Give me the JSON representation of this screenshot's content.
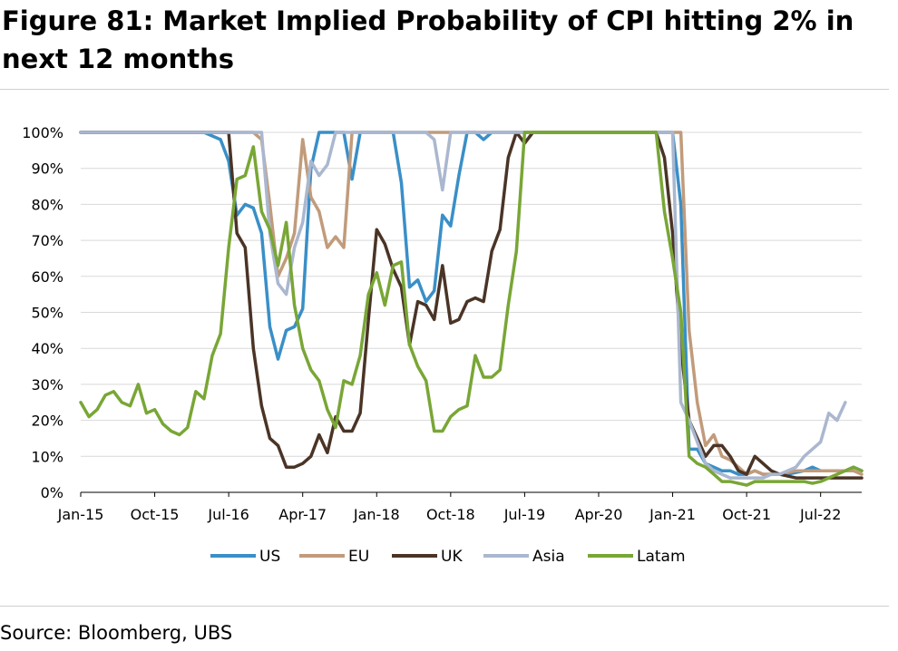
{
  "figure": {
    "title": "Figure 81: Market Implied Probability of CPI hitting 2% in next 12 months",
    "source": "Source: Bloomberg, UBS"
  },
  "chart_data": {
    "type": "line",
    "title": "Figure 81: Market Implied Probability of CPI hitting 2% in next 12 months",
    "xlabel": "",
    "ylabel": "",
    "ylim": [
      0,
      100
    ],
    "y_ticks": [
      "0%",
      "10%",
      "20%",
      "30%",
      "40%",
      "50%",
      "60%",
      "70%",
      "80%",
      "90%",
      "100%"
    ],
    "x_ticks": [
      "Jan-15",
      "Oct-15",
      "Jul-16",
      "Apr-17",
      "Jan-18",
      "Oct-18",
      "Jul-19",
      "Apr-20",
      "Jan-21",
      "Oct-21",
      "Jul-22"
    ],
    "x_range": [
      "2015-01",
      "2022-12"
    ],
    "grid": "horizontal",
    "legend_position": "bottom",
    "series": [
      {
        "name": "US",
        "color": "#3a8fc7",
        "points": [
          [
            "2015-01",
            100
          ],
          [
            "2016-01",
            100
          ],
          [
            "2016-04",
            100
          ],
          [
            "2016-06",
            98
          ],
          [
            "2016-07",
            92
          ],
          [
            "2016-08",
            77
          ],
          [
            "2016-09",
            80
          ],
          [
            "2016-10",
            79
          ],
          [
            "2016-11",
            72
          ],
          [
            "2016-12",
            46
          ],
          [
            "2017-01",
            37
          ],
          [
            "2017-02",
            45
          ],
          [
            "2017-03",
            46
          ],
          [
            "2017-04",
            51
          ],
          [
            "2017-05",
            90
          ],
          [
            "2017-06",
            100
          ],
          [
            "2017-07",
            100
          ],
          [
            "2017-08",
            100
          ],
          [
            "2017-09",
            100
          ],
          [
            "2017-10",
            87
          ],
          [
            "2017-11",
            100
          ],
          [
            "2018-01",
            100
          ],
          [
            "2018-03",
            100
          ],
          [
            "2018-04",
            86
          ],
          [
            "2018-05",
            57
          ],
          [
            "2018-06",
            59
          ],
          [
            "2018-07",
            53
          ],
          [
            "2018-08",
            56
          ],
          [
            "2018-09",
            77
          ],
          [
            "2018-10",
            74
          ],
          [
            "2018-11",
            88
          ],
          [
            "2018-12",
            100
          ],
          [
            "2019-01",
            100
          ],
          [
            "2019-02",
            98
          ],
          [
            "2019-03",
            100
          ],
          [
            "2019-05",
            100
          ],
          [
            "2020-06",
            100
          ],
          [
            "2020-10",
            100
          ],
          [
            "2021-01",
            100
          ],
          [
            "2021-02",
            80
          ],
          [
            "2021-03",
            12
          ],
          [
            "2021-04",
            12
          ],
          [
            "2021-05",
            8
          ],
          [
            "2021-06",
            7
          ],
          [
            "2021-07",
            6
          ],
          [
            "2021-08",
            6
          ],
          [
            "2021-09",
            5
          ],
          [
            "2021-10",
            5
          ],
          [
            "2021-11",
            6
          ],
          [
            "2021-12",
            5
          ],
          [
            "2022-01",
            5
          ],
          [
            "2022-03",
            5
          ],
          [
            "2022-05",
            6
          ],
          [
            "2022-06",
            7
          ],
          [
            "2022-07",
            6
          ],
          [
            "2022-09",
            6
          ],
          [
            "2022-10",
            6
          ],
          [
            "2022-11",
            7
          ],
          [
            "2022-12",
            6
          ]
        ]
      },
      {
        "name": "EU",
        "color": "#c19b7b",
        "points": [
          [
            "2015-01",
            100
          ],
          [
            "2016-04",
            100
          ],
          [
            "2016-10",
            100
          ],
          [
            "2016-11",
            98
          ],
          [
            "2016-12",
            80
          ],
          [
            "2017-01",
            60
          ],
          [
            "2017-02",
            65
          ],
          [
            "2017-03",
            72
          ],
          [
            "2017-04",
            98
          ],
          [
            "2017-05",
            82
          ],
          [
            "2017-06",
            78
          ],
          [
            "2017-07",
            68
          ],
          [
            "2017-08",
            71
          ],
          [
            "2017-09",
            68
          ],
          [
            "2017-10",
            100
          ],
          [
            "2018-01",
            100
          ],
          [
            "2019-01",
            100
          ],
          [
            "2020-01",
            100
          ],
          [
            "2020-10",
            100
          ],
          [
            "2021-01",
            100
          ],
          [
            "2021-02",
            100
          ],
          [
            "2021-03",
            45
          ],
          [
            "2021-04",
            25
          ],
          [
            "2021-05",
            13
          ],
          [
            "2021-06",
            16
          ],
          [
            "2021-07",
            10
          ],
          [
            "2021-08",
            9
          ],
          [
            "2021-09",
            7
          ],
          [
            "2021-10",
            5
          ],
          [
            "2021-11",
            6
          ],
          [
            "2021-12",
            5
          ],
          [
            "2022-01",
            5
          ],
          [
            "2022-02",
            5
          ],
          [
            "2022-04",
            6
          ],
          [
            "2022-06",
            6
          ],
          [
            "2022-08",
            6
          ],
          [
            "2022-10",
            6
          ],
          [
            "2022-11",
            6
          ],
          [
            "2022-12",
            5
          ]
        ]
      },
      {
        "name": "UK",
        "color": "#4a3426",
        "points": [
          [
            "2015-01",
            100
          ],
          [
            "2016-06",
            100
          ],
          [
            "2016-07",
            100
          ],
          [
            "2016-08",
            72
          ],
          [
            "2016-09",
            68
          ],
          [
            "2016-10",
            40
          ],
          [
            "2016-11",
            24
          ],
          [
            "2016-12",
            15
          ],
          [
            "2017-01",
            13
          ],
          [
            "2017-02",
            7
          ],
          [
            "2017-03",
            7
          ],
          [
            "2017-04",
            8
          ],
          [
            "2017-05",
            10
          ],
          [
            "2017-06",
            16
          ],
          [
            "2017-07",
            11
          ],
          [
            "2017-08",
            21
          ],
          [
            "2017-09",
            17
          ],
          [
            "2017-10",
            17
          ],
          [
            "2017-11",
            22
          ],
          [
            "2017-12",
            48
          ],
          [
            "2018-01",
            73
          ],
          [
            "2018-02",
            69
          ],
          [
            "2018-03",
            62
          ],
          [
            "2018-04",
            57
          ],
          [
            "2018-05",
            41
          ],
          [
            "2018-06",
            53
          ],
          [
            "2018-07",
            52
          ],
          [
            "2018-08",
            48
          ],
          [
            "2018-09",
            63
          ],
          [
            "2018-10",
            47
          ],
          [
            "2018-11",
            48
          ],
          [
            "2018-12",
            53
          ],
          [
            "2019-01",
            54
          ],
          [
            "2019-02",
            53
          ],
          [
            "2019-03",
            67
          ],
          [
            "2019-04",
            73
          ],
          [
            "2019-05",
            93
          ],
          [
            "2019-06",
            100
          ],
          [
            "2019-07",
            97
          ],
          [
            "2019-08",
            100
          ],
          [
            "2020-01",
            100
          ],
          [
            "2020-10",
            100
          ],
          [
            "2020-11",
            100
          ],
          [
            "2020-12",
            93
          ],
          [
            "2021-01",
            72
          ],
          [
            "2021-02",
            40
          ],
          [
            "2021-03",
            20
          ],
          [
            "2021-04",
            15
          ],
          [
            "2021-05",
            10
          ],
          [
            "2021-06",
            13
          ],
          [
            "2021-07",
            13
          ],
          [
            "2021-08",
            10
          ],
          [
            "2021-09",
            6
          ],
          [
            "2021-10",
            5
          ],
          [
            "2021-11",
            10
          ],
          [
            "2021-12",
            8
          ],
          [
            "2022-01",
            6
          ],
          [
            "2022-02",
            5
          ],
          [
            "2022-04",
            4
          ],
          [
            "2022-06",
            4
          ],
          [
            "2022-08",
            4
          ],
          [
            "2022-10",
            4
          ],
          [
            "2022-12",
            4
          ]
        ]
      },
      {
        "name": "Asia",
        "color": "#aab7cf",
        "points": [
          [
            "2015-01",
            100
          ],
          [
            "2016-04",
            100
          ],
          [
            "2016-10",
            100
          ],
          [
            "2016-11",
            100
          ],
          [
            "2016-12",
            72
          ],
          [
            "2017-01",
            58
          ],
          [
            "2017-02",
            55
          ],
          [
            "2017-03",
            68
          ],
          [
            "2017-04",
            75
          ],
          [
            "2017-05",
            92
          ],
          [
            "2017-06",
            88
          ],
          [
            "2017-07",
            91
          ],
          [
            "2017-08",
            100
          ],
          [
            "2017-10",
            100
          ],
          [
            "2018-01",
            100
          ],
          [
            "2018-06",
            100
          ],
          [
            "2018-07",
            100
          ],
          [
            "2018-08",
            98
          ],
          [
            "2018-09",
            84
          ],
          [
            "2018-10",
            100
          ],
          [
            "2019-01",
            100
          ],
          [
            "2020-01",
            100
          ],
          [
            "2020-10",
            100
          ],
          [
            "2021-01",
            100
          ],
          [
            "2021-02",
            25
          ],
          [
            "2021-03",
            20
          ],
          [
            "2021-04",
            14
          ],
          [
            "2021-05",
            8
          ],
          [
            "2021-06",
            6
          ],
          [
            "2021-07",
            5
          ],
          [
            "2021-08",
            4
          ],
          [
            "2021-09",
            4
          ],
          [
            "2021-10",
            4
          ],
          [
            "2021-11",
            4
          ],
          [
            "2021-12",
            4
          ],
          [
            "2022-01",
            5
          ],
          [
            "2022-02",
            5
          ],
          [
            "2022-03",
            6
          ],
          [
            "2022-04",
            7
          ],
          [
            "2022-05",
            10
          ],
          [
            "2022-06",
            12
          ],
          [
            "2022-07",
            14
          ],
          [
            "2022-08",
            22
          ],
          [
            "2022-09",
            20
          ],
          [
            "2022-10",
            25
          ]
        ]
      },
      {
        "name": "Latam",
        "color": "#79a636",
        "points": [
          [
            "2015-01",
            25
          ],
          [
            "2015-02",
            21
          ],
          [
            "2015-03",
            23
          ],
          [
            "2015-04",
            27
          ],
          [
            "2015-05",
            28
          ],
          [
            "2015-06",
            25
          ],
          [
            "2015-07",
            24
          ],
          [
            "2015-08",
            30
          ],
          [
            "2015-09",
            22
          ],
          [
            "2015-10",
            23
          ],
          [
            "2015-11",
            19
          ],
          [
            "2015-12",
            17
          ],
          [
            "2016-01",
            16
          ],
          [
            "2016-02",
            18
          ],
          [
            "2016-03",
            28
          ],
          [
            "2016-04",
            26
          ],
          [
            "2016-05",
            38
          ],
          [
            "2016-06",
            44
          ],
          [
            "2016-07",
            68
          ],
          [
            "2016-08",
            87
          ],
          [
            "2016-09",
            88
          ],
          [
            "2016-10",
            96
          ],
          [
            "2016-11",
            78
          ],
          [
            "2016-12",
            73
          ],
          [
            "2017-01",
            63
          ],
          [
            "2017-02",
            75
          ],
          [
            "2017-03",
            52
          ],
          [
            "2017-04",
            40
          ],
          [
            "2017-05",
            34
          ],
          [
            "2017-06",
            31
          ],
          [
            "2017-07",
            23
          ],
          [
            "2017-08",
            18
          ],
          [
            "2017-09",
            31
          ],
          [
            "2017-10",
            30
          ],
          [
            "2017-11",
            38
          ],
          [
            "2017-12",
            55
          ],
          [
            "2018-01",
            61
          ],
          [
            "2018-02",
            52
          ],
          [
            "2018-03",
            63
          ],
          [
            "2018-04",
            64
          ],
          [
            "2018-05",
            41
          ],
          [
            "2018-06",
            35
          ],
          [
            "2018-07",
            31
          ],
          [
            "2018-08",
            17
          ],
          [
            "2018-09",
            17
          ],
          [
            "2018-10",
            21
          ],
          [
            "2018-11",
            23
          ],
          [
            "2018-12",
            24
          ],
          [
            "2019-01",
            38
          ],
          [
            "2019-02",
            32
          ],
          [
            "2019-03",
            32
          ],
          [
            "2019-04",
            34
          ],
          [
            "2019-05",
            52
          ],
          [
            "2019-06",
            67
          ],
          [
            "2019-07",
            100
          ],
          [
            "2020-01",
            100
          ],
          [
            "2020-10",
            100
          ],
          [
            "2020-11",
            100
          ],
          [
            "2020-12",
            78
          ],
          [
            "2021-01",
            65
          ],
          [
            "2021-02",
            50
          ],
          [
            "2021-03",
            10
          ],
          [
            "2021-04",
            8
          ],
          [
            "2021-05",
            7
          ],
          [
            "2021-06",
            5
          ],
          [
            "2021-07",
            3
          ],
          [
            "2021-08",
            3
          ],
          [
            "2021-09",
            2.5
          ],
          [
            "2021-10",
            2
          ],
          [
            "2021-11",
            3
          ],
          [
            "2021-12",
            3
          ],
          [
            "2022-01",
            3
          ],
          [
            "2022-03",
            3
          ],
          [
            "2022-05",
            3
          ],
          [
            "2022-06",
            2.5
          ],
          [
            "2022-07",
            3
          ],
          [
            "2022-08",
            4
          ],
          [
            "2022-09",
            5
          ],
          [
            "2022-10",
            6
          ],
          [
            "2022-11",
            7
          ],
          [
            "2022-12",
            6
          ]
        ]
      }
    ]
  }
}
